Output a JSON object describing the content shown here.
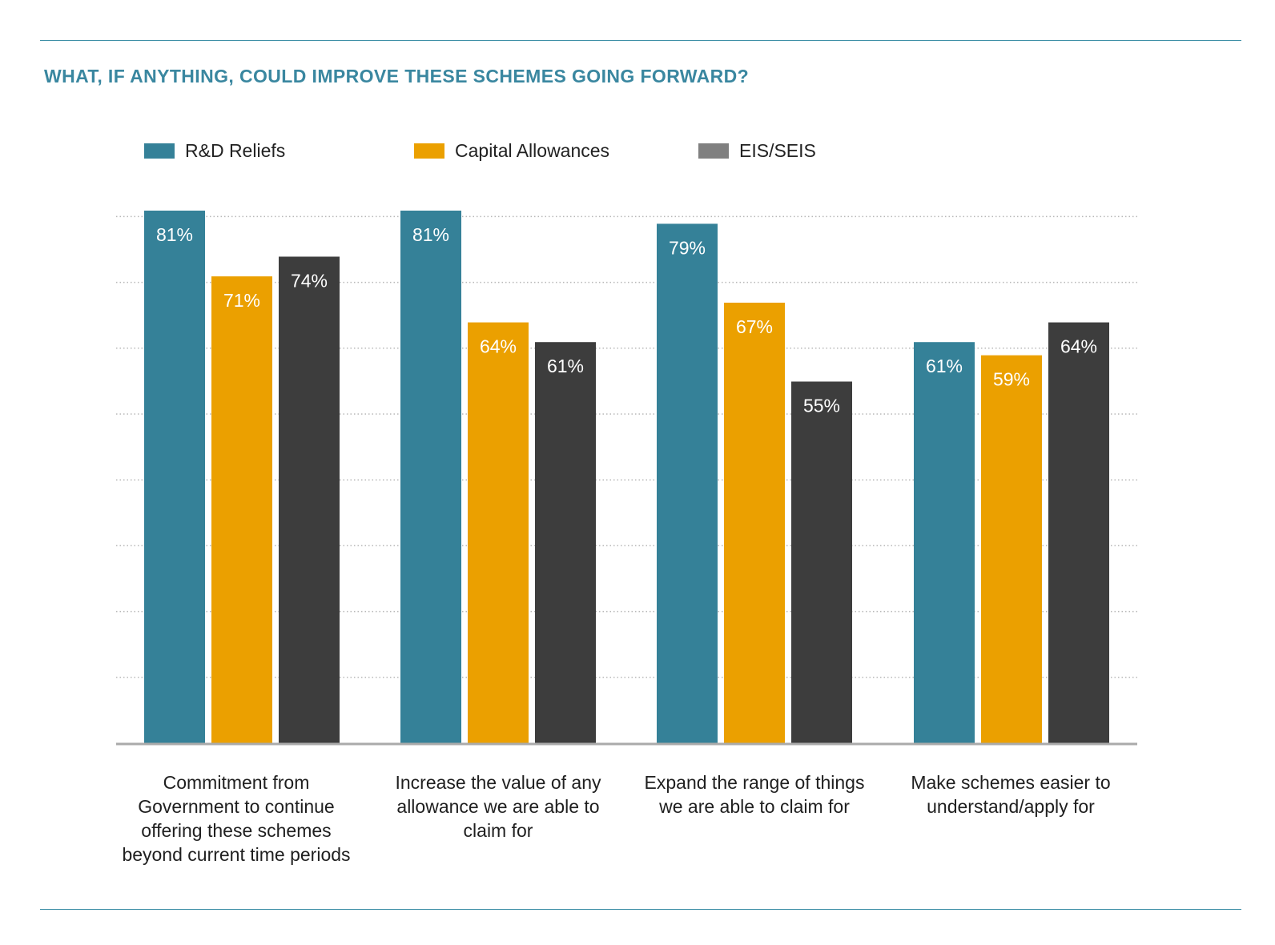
{
  "title": "WHAT, IF ANYTHING, COULD IMPROVE THESE SCHEMES GOING FORWARD?",
  "colors": {
    "rule": "#3d8fa6",
    "title": "#3a87a0",
    "grid": "#b8b8b8",
    "baseline": "#aaaaaa"
  },
  "chart_data": {
    "type": "bar",
    "title": "WHAT, IF ANYTHING, COULD IMPROVE THESE SCHEMES GOING FORWARD?",
    "categories": [
      "Commitment from Government to continue offering these schemes beyond current time periods",
      "Increase the value of any allowance we are able to claim for",
      "Expand the range of things we are able to claim for",
      "Make schemes easier to understand/apply for"
    ],
    "series": [
      {
        "name": "R&D Reliefs",
        "color": "#358198",
        "values": [
          81,
          81,
          79,
          61
        ],
        "labels": [
          "81%",
          "81%",
          "79%",
          "61%"
        ]
      },
      {
        "name": "Capital Allowances",
        "color": "#eba000",
        "values": [
          71,
          64,
          67,
          59
        ],
        "labels": [
          "71%",
          "64%",
          "67%",
          "59%"
        ]
      },
      {
        "name": "EIS/SEIS",
        "color": "#3d3d3d",
        "legend_color": "#808080",
        "values": [
          74,
          61,
          55,
          64
        ],
        "labels": [
          "74%",
          "61%",
          "55%",
          "64%"
        ]
      }
    ],
    "ylim": [
      0,
      81
    ],
    "grid": true,
    "legend_position": "top-left",
    "xlabel": "",
    "ylabel": ""
  }
}
